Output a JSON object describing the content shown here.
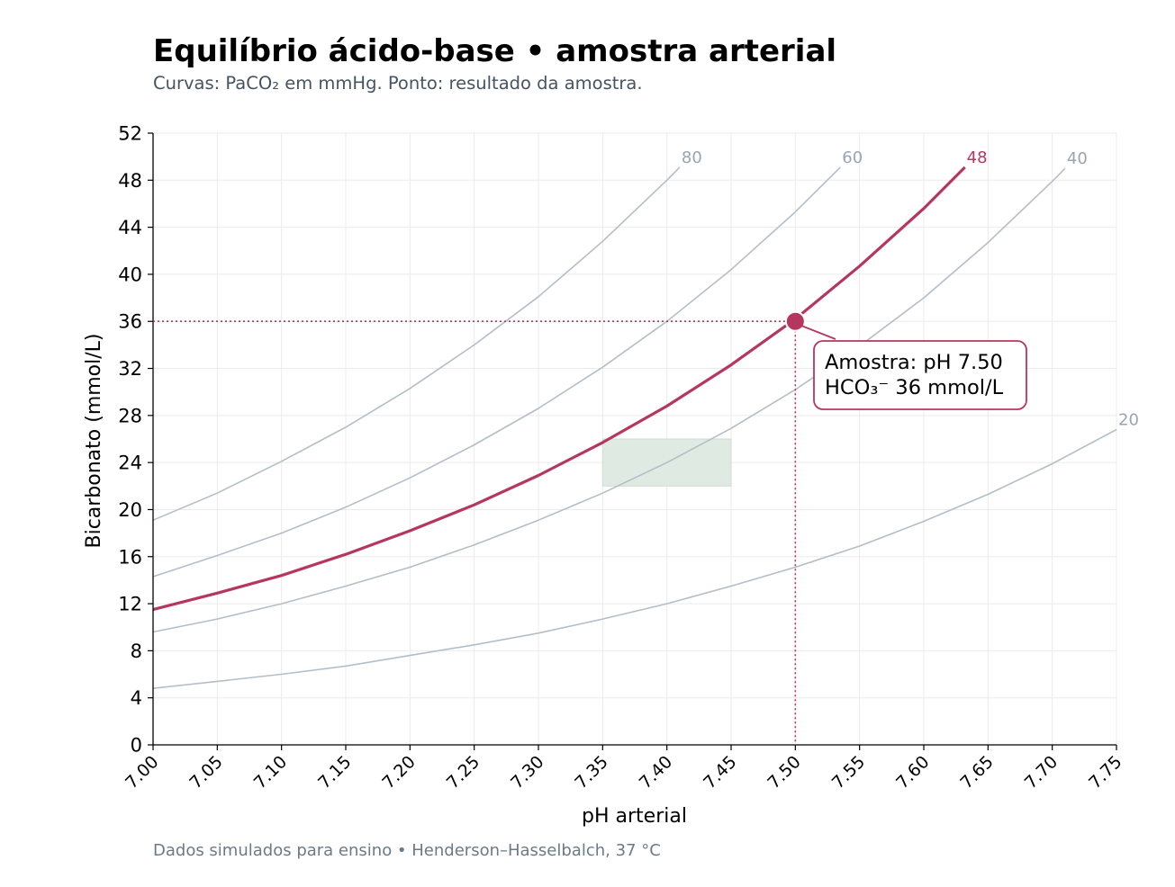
{
  "chart_data": {
    "type": "line",
    "title": "Equilíbrio ácido-base • amostra arterial",
    "subtitle": "Curvas: PaCO₂ em mmHg. Ponto: resultado da amostra.",
    "footer": "Dados simulados para ensino • Henderson–Hasselbalch, 37 °C",
    "xlabel": "pH arterial",
    "ylabel": "Bicarbonato (mmol/L)",
    "xlim": [
      7.0,
      7.75
    ],
    "ylim": [
      0,
      52
    ],
    "x_ticks": [
      "7.00",
      "7.05",
      "7.10",
      "7.15",
      "7.20",
      "7.25",
      "7.30",
      "7.35",
      "7.40",
      "7.45",
      "7.50",
      "7.55",
      "7.60",
      "7.65",
      "7.70",
      "7.75"
    ],
    "y_ticks": [
      "0",
      "4",
      "8",
      "12",
      "16",
      "20",
      "24",
      "28",
      "32",
      "36",
      "40",
      "44",
      "48",
      "52"
    ],
    "grid": true,
    "series": [
      {
        "name": "80",
        "paco2": 80,
        "highlight": false,
        "color": "#b3bec8",
        "x": [
          7.0,
          7.05,
          7.1,
          7.15,
          7.2,
          7.25,
          7.3,
          7.35,
          7.4,
          7.41
        ],
        "y": [
          19.1,
          21.4,
          24.1,
          27.0,
          30.3,
          34.0,
          38.1,
          42.8,
          48.0,
          49.1
        ]
      },
      {
        "name": "60",
        "paco2": 60,
        "highlight": false,
        "color": "#b3bec8",
        "x": [
          7.0,
          7.05,
          7.1,
          7.15,
          7.2,
          7.25,
          7.3,
          7.35,
          7.4,
          7.45,
          7.5,
          7.535
        ],
        "y": [
          14.3,
          16.1,
          18.0,
          20.2,
          22.7,
          25.5,
          28.6,
          32.1,
          36.0,
          40.4,
          45.3,
          49.1
        ]
      },
      {
        "name": "48",
        "paco2": 48,
        "highlight": true,
        "color": "#b5375f",
        "x": [
          7.0,
          7.05,
          7.1,
          7.15,
          7.2,
          7.25,
          7.3,
          7.35,
          7.4,
          7.45,
          7.5,
          7.55,
          7.6,
          7.632
        ],
        "y": [
          11.5,
          12.9,
          14.4,
          16.2,
          18.2,
          20.4,
          22.9,
          25.7,
          28.8,
          32.3,
          36.2,
          40.7,
          45.6,
          49.1
        ]
      },
      {
        "name": "40",
        "paco2": 40,
        "highlight": false,
        "color": "#b3bec8",
        "x": [
          7.0,
          7.05,
          7.1,
          7.15,
          7.2,
          7.25,
          7.3,
          7.35,
          7.4,
          7.45,
          7.5,
          7.55,
          7.6,
          7.65,
          7.7,
          7.71
        ],
        "y": [
          9.6,
          10.7,
          12.0,
          13.5,
          15.1,
          17.0,
          19.1,
          21.4,
          24.0,
          26.9,
          30.2,
          33.9,
          38.0,
          42.7,
          47.9,
          49.0
        ]
      },
      {
        "name": "20",
        "paco2": 20,
        "highlight": false,
        "color": "#b3bec8",
        "x": [
          7.0,
          7.05,
          7.1,
          7.15,
          7.2,
          7.25,
          7.3,
          7.35,
          7.4,
          7.45,
          7.5,
          7.55,
          7.6,
          7.65,
          7.7,
          7.75
        ],
        "y": [
          4.8,
          5.4,
          6.0,
          6.7,
          7.6,
          8.5,
          9.5,
          10.7,
          12.0,
          13.5,
          15.1,
          16.9,
          19.0,
          21.3,
          23.9,
          26.8
        ]
      }
    ],
    "normal_range": {
      "x": [
        7.35,
        7.45
      ],
      "y": [
        22,
        26
      ],
      "color": "#dfeae2"
    },
    "sample": {
      "x": 7.5,
      "y": 36,
      "color": "#b5375f"
    },
    "annotation": {
      "line1": "Amostra: pH 7.50",
      "line2": "HCO₃⁻ 36 mmol/L"
    }
  }
}
